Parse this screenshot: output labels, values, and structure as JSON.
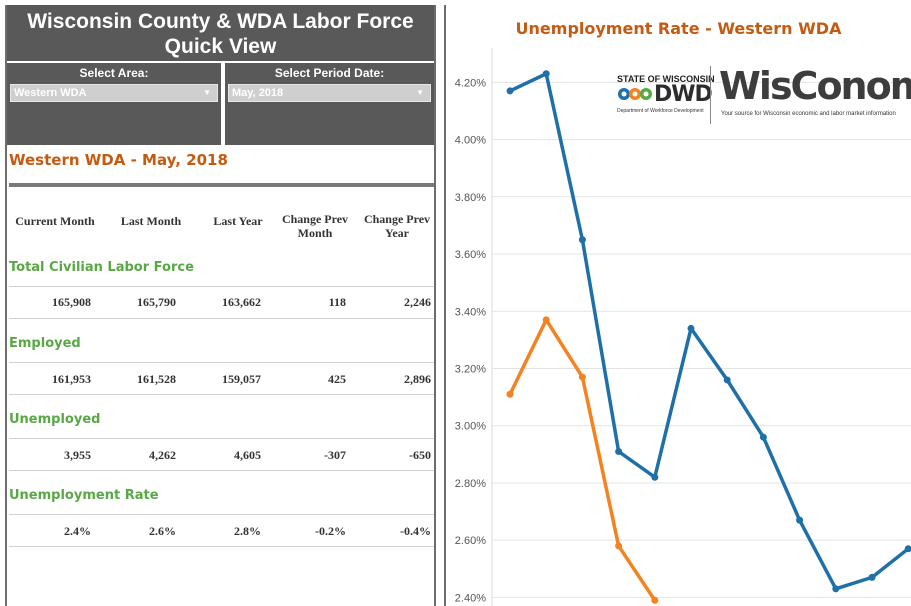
{
  "dashboard": {
    "title": "Wisconsin County & WDA Labor Force Quick View",
    "area_label": "Select Area:",
    "area_value": "Western WDA",
    "period_label": "Select Period Date:",
    "period_value": "May, 2018",
    "section_title": "Western WDA - May, 2018"
  },
  "table": {
    "columns": [
      "Current Month",
      "Last Month",
      "Last Year",
      "Change Prev Month",
      "Change Prev Year"
    ],
    "rows": [
      {
        "label": "Total Civilian Labor Force",
        "values": [
          "165,908",
          "165,790",
          "163,662",
          "118",
          "2,246"
        ]
      },
      {
        "label": "Employed",
        "values": [
          "161,953",
          "161,528",
          "159,057",
          "425",
          "2,896"
        ]
      },
      {
        "label": "Unemployed",
        "values": [
          "3,955",
          "4,262",
          "4,605",
          "-307",
          "-650"
        ]
      },
      {
        "label": "Unemployment Rate",
        "values": [
          "2.4%",
          "2.6%",
          "2.8%",
          "-0.2%",
          "-0.4%"
        ]
      }
    ]
  },
  "logos": {
    "dwd_top": "STATE OF WISCONSIN",
    "dwd_name": "DWD",
    "dwd_sub": "Department of Workforce Development",
    "wis_name": "WisConomy",
    "wis_sub": "Your source for Wisconsin economic and labor market information"
  },
  "colors": {
    "accent_orange": "#c55a11",
    "label_green": "#5aa845",
    "header_gray": "#595959",
    "series_blue": "#1f6fa8",
    "series_orange": "#f5821f"
  },
  "chart_data": {
    "type": "line",
    "title": "Unemployment Rate - Western WDA",
    "yticks": [
      "4.20%",
      "4.00%",
      "3.80%",
      "3.60%",
      "3.40%",
      "3.20%",
      "3.00%",
      "2.80%",
      "2.60%",
      "2.40%"
    ],
    "ylim": [
      2.37,
      4.32
    ],
    "grid": true,
    "series": [
      {
        "color": "#1f6fa8",
        "values": [
          4.17,
          4.23,
          3.65,
          2.91,
          2.82,
          3.34,
          3.16,
          2.96,
          2.67,
          2.43,
          2.47,
          2.57
        ]
      },
      {
        "color": "#f5821f",
        "values": [
          3.11,
          3.37,
          3.17,
          2.58,
          2.39
        ]
      }
    ]
  }
}
